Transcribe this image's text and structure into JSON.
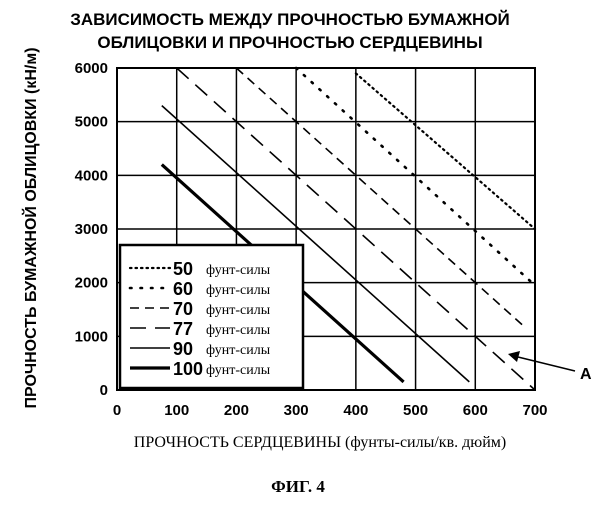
{
  "caption": "ФИГ. 4",
  "chart_data": {
    "type": "line",
    "title_lines": [
      "ЗАВИСИМОСТЬ МЕЖДУ ПРОЧНОСТЬЮ БУМАЖНОЙ",
      "ОБЛИЦОВКИ И ПРОЧНОСТЬЮ СЕРДЦЕВИНЫ"
    ],
    "xlabel": "ПРОЧНОСТЬ СЕРДЦЕВИНЫ (фунты-силы/кв. дюйм)",
    "ylabel": "ПРОЧНОСТЬ БУМАЖНОЙ ОБЛИЦОВКИ (кН/м)",
    "xlim": [
      0,
      700
    ],
    "ylim": [
      0,
      6000
    ],
    "xticks": [
      0,
      100,
      200,
      300,
      400,
      500,
      600,
      700
    ],
    "yticks": [
      0,
      1000,
      2000,
      3000,
      4000,
      5000,
      6000
    ],
    "grid": true,
    "legend_position": "bottom-left",
    "legend_unit": "фунт-силы",
    "annotation": {
      "text": "A",
      "points_to_series": "77"
    },
    "series": [
      {
        "name": "50",
        "dash": "dotted",
        "x": [
          400,
          700
        ],
        "y": [
          5900,
          3000
        ]
      },
      {
        "name": "60",
        "dash": "dotted-sparse",
        "x": [
          300,
          700
        ],
        "y": [
          6000,
          1950
        ]
      },
      {
        "name": "70",
        "dash": "dashed",
        "x": [
          200,
          680
        ],
        "y": [
          6000,
          1200
        ]
      },
      {
        "name": "77",
        "dash": "long-dashed",
        "x": [
          100,
          700
        ],
        "y": [
          6000,
          0
        ]
      },
      {
        "name": "90",
        "dash": "solid",
        "x": [
          75,
          590
        ],
        "y": [
          5300,
          150
        ]
      },
      {
        "name": "100",
        "dash": "solid-thick",
        "x": [
          75,
          480
        ],
        "y": [
          4200,
          150
        ]
      }
    ]
  }
}
